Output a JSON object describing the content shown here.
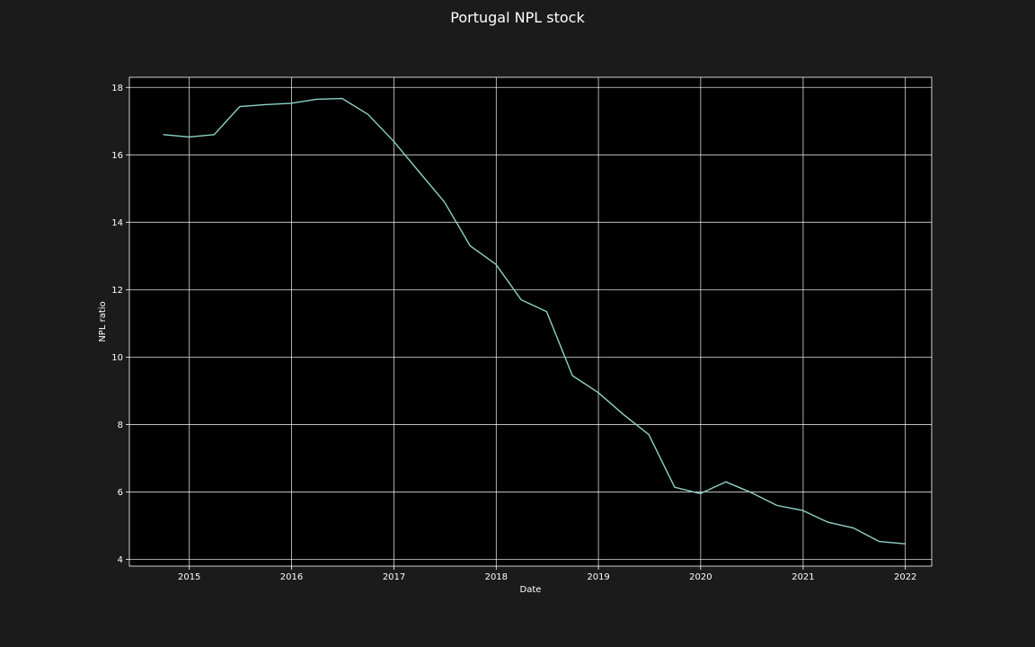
{
  "chart_data": {
    "type": "line",
    "title": "Portugal NPL stock",
    "xlabel": "Date",
    "ylabel": "NPL ratio",
    "x_ticks": [
      "2015",
      "2016",
      "2017",
      "2018",
      "2019",
      "2020",
      "2021",
      "2022"
    ],
    "y_ticks": [
      4,
      6,
      8,
      10,
      12,
      14,
      16,
      18
    ],
    "xlim": [
      "2014-06-01",
      "2022-04-05"
    ],
    "ylim": [
      3.8,
      18.3
    ],
    "grid": true,
    "series": [
      {
        "color": "#8dd3c7",
        "x": [
          "2014-09-30",
          "2014-12-31",
          "2015-03-31",
          "2015-06-30",
          "2015-09-30",
          "2015-12-31",
          "2016-03-31",
          "2016-06-30",
          "2016-09-30",
          "2016-12-31",
          "2017-03-31",
          "2017-06-30",
          "2017-09-30",
          "2017-12-31",
          "2018-03-31",
          "2018-06-30",
          "2018-09-30",
          "2018-12-31",
          "2019-03-31",
          "2019-06-30",
          "2019-09-30",
          "2019-12-31",
          "2020-03-31",
          "2020-06-30",
          "2020-09-30",
          "2020-12-31",
          "2021-03-31",
          "2021-06-30",
          "2021-09-30",
          "2021-12-31"
        ],
        "values": [
          16.6,
          16.53,
          16.6,
          17.43,
          17.49,
          17.53,
          17.65,
          17.67,
          17.2,
          16.4,
          15.5,
          14.6,
          13.3,
          12.75,
          11.7,
          11.35,
          9.45,
          8.95,
          8.3,
          7.7,
          6.14,
          5.95,
          6.3,
          5.98,
          5.6,
          5.45,
          5.1,
          4.93,
          4.53,
          4.46
        ]
      }
    ]
  },
  "colors": {
    "figure_background": "#1b1b1b",
    "plot_background": "#000000",
    "grid": "#ffffff",
    "line": "#8dd3c7",
    "text": "#ffffff"
  }
}
